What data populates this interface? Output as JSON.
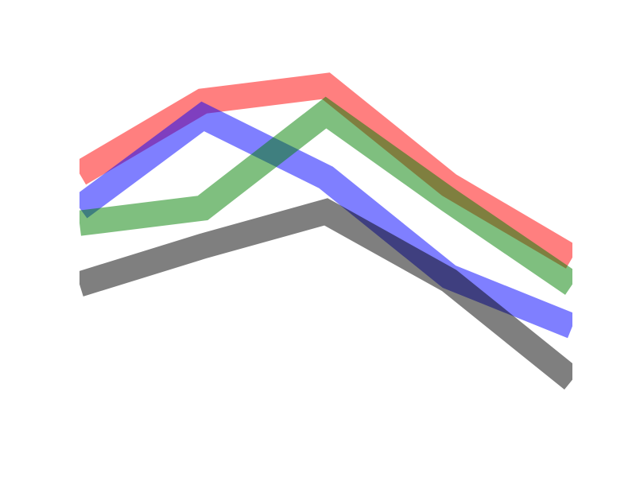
{
  "chart_data": {
    "type": "line",
    "title": "",
    "xlabel": "",
    "ylabel": "",
    "x": [
      0,
      1,
      2,
      3,
      4
    ],
    "xlim": [
      0,
      4
    ],
    "ylim": [
      0,
      10
    ],
    "grid": false,
    "axes_visible": false,
    "line_opacity": 0.5,
    "series": [
      {
        "color": "#ff0000",
        "values": [
          6.7,
          8.6,
          9.0,
          6.4,
          4.5
        ]
      },
      {
        "color": "#0000ff",
        "values": [
          5.8,
          8.2,
          6.6,
          4.0,
          2.7
        ]
      },
      {
        "color": "#008000",
        "values": [
          5.4,
          5.8,
          8.3,
          6.0,
          3.8
        ]
      },
      {
        "color": "#000000",
        "values": [
          3.8,
          4.8,
          5.7,
          3.9,
          1.3
        ]
      }
    ]
  }
}
